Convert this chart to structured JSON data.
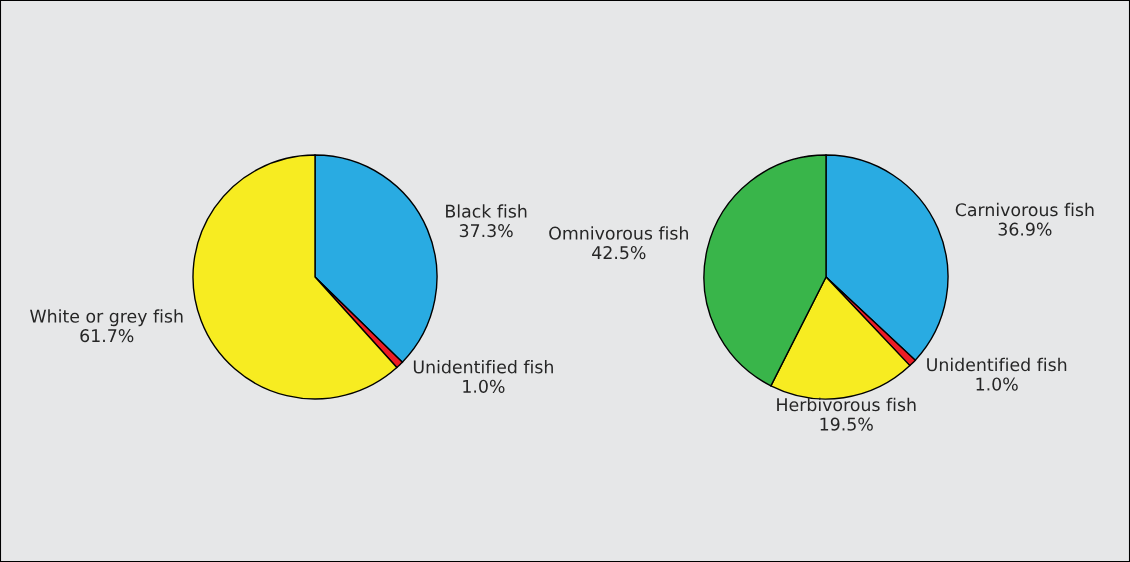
{
  "chart_data": [
    {
      "type": "pie",
      "categories": [
        "Black fish",
        "Unidentified fish",
        "White or grey fish"
      ],
      "values": [
        37.3,
        1.0,
        61.7
      ],
      "value_labels": [
        "37.3%",
        "1.0%",
        "61.7%"
      ],
      "colors": [
        "#29abe2",
        "#ed1c24",
        "#f7ec21"
      ]
    },
    {
      "type": "pie",
      "categories": [
        "Carnivorous fish",
        "Unidentified fish",
        "Herbivorous fish",
        "Omnivorous fish"
      ],
      "values": [
        36.9,
        1.0,
        19.5,
        42.5
      ],
      "value_labels": [
        "36.9%",
        "1.0%",
        "19.5%",
        "42.5%"
      ],
      "colors": [
        "#29abe2",
        "#ed1c24",
        "#f7ec21",
        "#39b54a"
      ]
    }
  ]
}
